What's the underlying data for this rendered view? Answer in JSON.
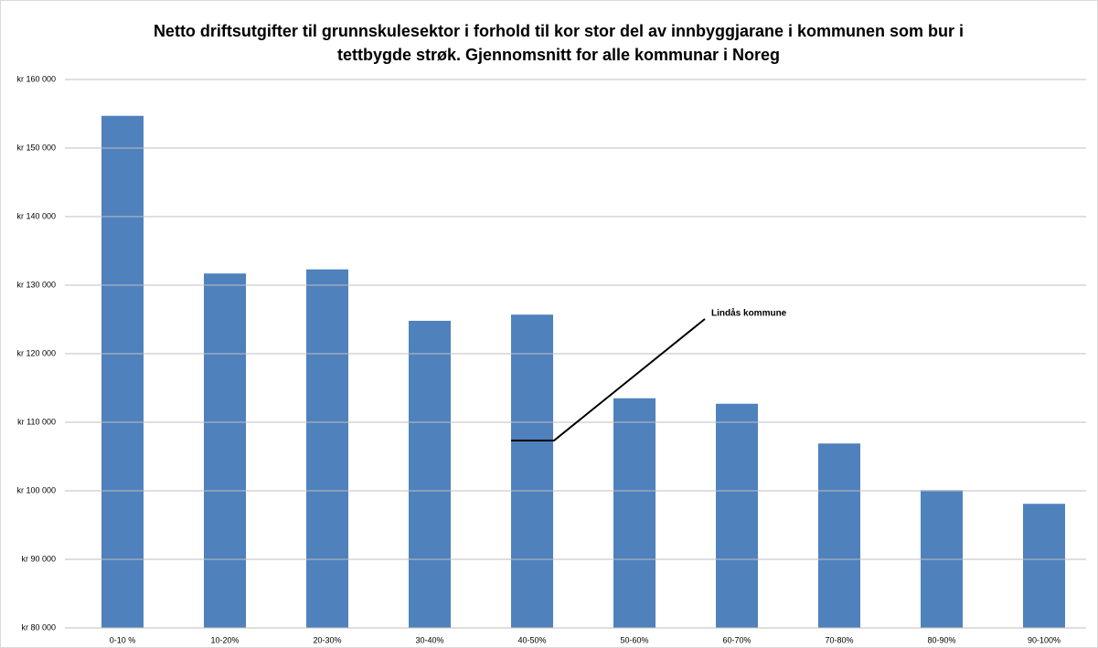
{
  "chart_data": {
    "type": "bar",
    "title": "Netto driftsutgifter til grunnskulesektor i forhold til kor stor del av innbyggjarane i kommunen som bur i tettbygde strøk. Gjennomsnitt for alle kommunar i Noreg",
    "categories": [
      "0-10 %",
      "10-20%",
      "20-30%",
      "30-40%",
      "40-50%",
      "50-60%",
      "60-70%",
      "70-80%",
      "80-90%",
      "90-100%"
    ],
    "values": [
      154700,
      131700,
      132300,
      124800,
      125700,
      113500,
      112700,
      106900,
      100100,
      98100
    ],
    "color": "#4f81bd",
    "ylim": [
      80000,
      160000
    ],
    "yticks": [
      {
        "value": 80000,
        "label": "kr 80 000"
      },
      {
        "value": 90000,
        "label": "kr 90 000"
      },
      {
        "value": 100000,
        "label": "kr 100 000"
      },
      {
        "value": 110000,
        "label": "kr 110 000"
      },
      {
        "value": 120000,
        "label": "kr 120 000"
      },
      {
        "value": 130000,
        "label": "kr 130 000"
      },
      {
        "value": 140000,
        "label": "kr 140 000"
      },
      {
        "value": 150000,
        "label": "kr 150 000"
      },
      {
        "value": 160000,
        "label": "kr 160 000"
      }
    ],
    "grid": true,
    "annotation": "Lindås kommune"
  }
}
